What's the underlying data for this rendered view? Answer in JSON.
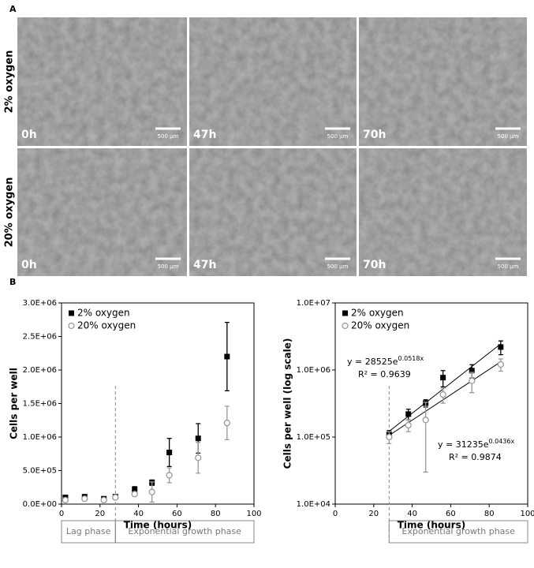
{
  "panel_a": {
    "label": "A",
    "rows": [
      {
        "label": "2% oxygen",
        "images": [
          {
            "time": "0h",
            "scale": "500 µm"
          },
          {
            "time": "47h",
            "scale": "500 µm"
          },
          {
            "time": "70h",
            "scale": "500 µm"
          }
        ]
      },
      {
        "label": "20% oxygen",
        "images": [
          {
            "time": "0h",
            "scale": "500 µm"
          },
          {
            "time": "47h",
            "scale": "500 µm"
          },
          {
            "time": "70h",
            "scale": "500 µm"
          }
        ]
      }
    ]
  },
  "panel_b_label": "B",
  "chart_data": [
    {
      "type": "scatter",
      "x_label": "Time (hours)",
      "y_label": "Cells per well",
      "x": [
        2,
        12,
        22,
        28,
        38,
        47,
        56,
        71,
        86
      ],
      "series": [
        {
          "name": "2% oxygen",
          "color": "#000000",
          "marker": "square",
          "values": [
            100000,
            110000,
            80000,
            110000,
            220000,
            320000,
            770000,
            980000,
            2200000
          ],
          "errors": [
            15000,
            15000,
            15000,
            15000,
            40000,
            40000,
            210000,
            220000,
            510000
          ]
        },
        {
          "name": "20% oxygen",
          "color": "#999999",
          "marker": "circle",
          "values": [
            60000,
            80000,
            60000,
            100000,
            150000,
            180000,
            430000,
            690000,
            1210000
          ],
          "errors": [
            10000,
            10000,
            10000,
            20000,
            30000,
            150000,
            110000,
            230000,
            250000
          ]
        }
      ],
      "xlim": [
        0,
        100
      ],
      "xticks": [
        0,
        20,
        40,
        60,
        80,
        100
      ],
      "ylim": [
        0,
        3000000
      ],
      "yticks": [
        {
          "value": 0,
          "label": "0.0E+00"
        },
        {
          "value": 500000,
          "label": "5.0E+05"
        },
        {
          "value": 1000000,
          "label": "1.0E+06"
        },
        {
          "value": 1500000,
          "label": "1.5E+06"
        },
        {
          "value": 2000000,
          "label": "2.0E+06"
        },
        {
          "value": 2500000,
          "label": "2.5E+06"
        },
        {
          "value": 3000000,
          "label": "3.0E+06"
        }
      ],
      "log_scale": false,
      "legend": "upper left",
      "phase_boundary": 28,
      "phases": [
        "Lag phase",
        "Exponential growth phase"
      ]
    },
    {
      "type": "scatter",
      "x_label": "Time (hours)",
      "y_label": "Cells per well (log scale)",
      "x": [
        28,
        38,
        47,
        56,
        71,
        86
      ],
      "series": [
        {
          "name": "2% oxygen",
          "color": "#000000",
          "marker": "square",
          "values": [
            110000,
            220000,
            320000,
            770000,
            980000,
            2200000
          ],
          "errors": [
            15000,
            40000,
            40000,
            210000,
            220000,
            510000
          ]
        },
        {
          "name": "20% oxygen",
          "color": "#999999",
          "marker": "circle",
          "values": [
            100000,
            150000,
            180000,
            430000,
            690000,
            1210000
          ],
          "errors": [
            20000,
            30000,
            150000,
            110000,
            230000,
            250000
          ]
        }
      ],
      "fits": [
        {
          "x": [
            28,
            86
          ],
          "values": [
            121700,
            2455000
          ],
          "equation": "y = 28525e",
          "exponent": "0.0518x",
          "r2": "R² = 0.9639"
        },
        {
          "x": [
            28,
            86
          ],
          "values": [
            105900,
            1327000
          ],
          "equation": "y = 31235e",
          "exponent": "0.0436x",
          "r2": "R² = 0.9874"
        }
      ],
      "xlim": [
        0,
        100
      ],
      "xticks": [
        0,
        20,
        40,
        60,
        80,
        100
      ],
      "ylim": [
        10000,
        10000000
      ],
      "yticks": [
        {
          "value": 10000,
          "label": "1.0E+04"
        },
        {
          "value": 100000,
          "label": "1.0E+05"
        },
        {
          "value": 1000000,
          "label": "1.0E+06"
        },
        {
          "value": 10000000,
          "label": "1.0E+07"
        }
      ],
      "log_scale": true,
      "legend": "upper left",
      "phase_boundary": 28,
      "phases": [
        "Exponential growth phase"
      ]
    }
  ]
}
